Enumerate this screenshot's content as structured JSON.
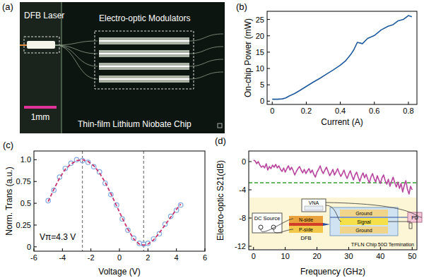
{
  "chart_data": [
    {
      "type": "image",
      "title": "(a)",
      "annotations": [
        "DFB Laser",
        "Electro-optic Modulators",
        "Thin-film Lithium Niobate Chip",
        "1mm"
      ]
    },
    {
      "type": "line",
      "title": "(b)",
      "x_label": "Current (A)",
      "y_label": "On-chip Power (mW)",
      "x": [
        0,
        0.03,
        0.06,
        0.08,
        0.1,
        0.13,
        0.16,
        0.2,
        0.24,
        0.28,
        0.32,
        0.36,
        0.4,
        0.43,
        0.46,
        0.48,
        0.5,
        0.53,
        0.56,
        0.6,
        0.64,
        0.68,
        0.71,
        0.74,
        0.77,
        0.8,
        0.82
      ],
      "series": [
        {
          "color": "#1f5b9c",
          "line_style": "solid",
          "values": [
            0.6,
            0.6,
            0.7,
            1.0,
            1.6,
            2.3,
            3.2,
            4.5,
            5.8,
            7.0,
            8.3,
            9.6,
            11.0,
            12.3,
            14.2,
            15.8,
            18.0,
            17.6,
            19.2,
            20.1,
            21.8,
            22.9,
            23.4,
            24.6,
            25.0,
            26.2,
            25.8
          ]
        }
      ],
      "xlim": [
        -0.03,
        0.85
      ],
      "xticks": [
        0,
        0.2,
        0.4,
        0.6,
        0.8
      ],
      "ylim": [
        -1,
        27.5
      ],
      "yticks": [
        0,
        5,
        10,
        15,
        20,
        25
      ],
      "grid": false
    },
    {
      "type": "line",
      "title": "(c)",
      "x_label": "Voltage (V)",
      "y_label": "Norm. Trans (a.u.)",
      "annotations": [
        "Vπ=4.3 V"
      ],
      "vlines": [
        -2.6,
        1.7
      ],
      "x": [
        -5,
        -4.6,
        -4.2,
        -3.8,
        -3.4,
        -3,
        -2.6,
        -2.2,
        -1.8,
        -1.4,
        -1,
        -0.6,
        -0.2,
        0.2,
        0.6,
        1,
        1.4,
        1.7,
        2,
        2.4,
        2.8,
        3.2,
        3.6,
        4,
        4.3
      ],
      "series": [
        {
          "color": "#7fa8e0",
          "marker": "circle",
          "line_style": "none",
          "values": [
            0.53,
            0.65,
            0.8,
            0.9,
            0.96,
            1.0,
            0.99,
            0.97,
            0.92,
            0.86,
            0.73,
            0.6,
            0.48,
            0.32,
            0.19,
            0.1,
            0.04,
            0.03,
            0.04,
            0.09,
            0.15,
            0.26,
            0.35,
            0.42,
            0.48
          ]
        },
        {
          "color": "#c8326e",
          "line_style": "dashed",
          "values": [
            0.52,
            0.66,
            0.79,
            0.89,
            0.95,
            0.99,
            1.0,
            0.98,
            0.93,
            0.85,
            0.74,
            0.61,
            0.47,
            0.33,
            0.2,
            0.09,
            0.03,
            0.02,
            0.03,
            0.08,
            0.16,
            0.25,
            0.34,
            0.43,
            0.49
          ]
        }
      ],
      "xlim": [
        -6,
        6
      ],
      "xticks": [
        -6,
        -4,
        -2,
        0,
        2,
        4,
        6
      ],
      "ylim": [
        -0.05,
        1.1
      ],
      "yticks": [
        0,
        0.25,
        0.5,
        0.75,
        {
          "value": 1,
          "label": "1.0"
        }
      ],
      "grid": false
    },
    {
      "type": "line",
      "title": "(d)",
      "x_label": "Frequency (GHz)",
      "y_label": "Electro-optic S21(dB)",
      "hlines": [
        -3
      ],
      "annotations": [
        "DC Source",
        "N-side",
        "P-side",
        "DFB",
        "TFLN Chip",
        "Ground",
        "Signal",
        "Ground",
        "VNA",
        "PD",
        "50Ω Termination"
      ],
      "x": [
        0,
        0.5,
        1,
        1.5,
        2,
        2.5,
        3,
        3.5,
        4,
        4.5,
        5,
        5.5,
        6,
        6.5,
        7,
        7.5,
        8,
        8.5,
        9,
        9.5,
        10,
        10.5,
        11,
        11.5,
        12,
        12.5,
        13,
        13.5,
        14,
        14.5,
        15,
        15.5,
        16,
        16.5,
        17,
        17.5,
        18,
        18.5,
        19,
        19.5,
        20,
        20.5,
        21,
        21.5,
        22,
        22.5,
        23,
        23.5,
        24,
        24.5,
        25,
        25.5,
        26,
        26.5,
        27,
        27.5,
        28,
        28.5,
        29,
        29.5,
        30,
        30.5,
        31,
        31.5,
        32,
        32.5,
        33,
        33.5,
        34,
        34.5,
        35,
        35.5,
        36,
        36.5,
        37,
        37.5,
        38,
        38.5,
        39,
        39.5,
        40,
        40.5,
        41,
        41.5,
        42,
        42.5,
        43,
        43.5,
        44,
        44.5,
        45,
        45.5,
        46,
        46.5,
        47,
        47.5,
        48,
        48.5,
        49,
        49.5,
        50
      ],
      "series": [
        {
          "color": "#b8449e",
          "line_style": "solid",
          "values": [
            0.2,
            0.1,
            -0.3,
            0,
            -0.5,
            -0.8,
            -0.6,
            -0.9,
            -0.3,
            -1.2,
            -0.7,
            -1.0,
            -0.5,
            -0.8,
            -0.4,
            -0.9,
            -0.6,
            -1.1,
            -1.4,
            -0.9,
            -1.5,
            -1.0,
            -0.6,
            -1.2,
            -0.8,
            -1.3,
            -1.9,
            -1.4,
            -1.0,
            -0.7,
            -1.2,
            -1.6,
            -1.1,
            -1.7,
            -1.3,
            -1.0,
            -1.6,
            -1.2,
            -1.8,
            -2.2,
            -1.5,
            -1.1,
            -0.6,
            -1.3,
            -1.7,
            -1.2,
            -0.8,
            -1.4,
            -2.0,
            -1.6,
            -1.1,
            -1.9,
            -1.5,
            -1.0,
            -1.6,
            -2.1,
            -1.7,
            -1.2,
            -1.9,
            -2.4,
            -1.8,
            -1.3,
            -2.0,
            -2.6,
            -1.9,
            -1.5,
            -2.2,
            -2.8,
            -2.1,
            -1.6,
            -2.3,
            -1.8,
            -2.5,
            -3.0,
            -2.2,
            -1.7,
            -2.4,
            -2.9,
            -2.0,
            -2.6,
            -3.1,
            -2.3,
            -1.9,
            -2.7,
            -3.2,
            -2.5,
            -3.5,
            -2.8,
            -2.2,
            -3.0,
            -3.6,
            -2.9,
            -3.8,
            -3.1,
            -4.3,
            -3.4,
            -2.7,
            -3.9,
            -4.6,
            -3.5,
            -4.0
          ]
        }
      ],
      "xlim": [
        -1.5,
        51.5
      ],
      "xticks": [
        0,
        10,
        20,
        30,
        40,
        50
      ],
      "ylim": [
        -12.5,
        1.5
      ],
      "yticks": [
        -12,
        -8,
        -4,
        0
      ],
      "grid": false
    }
  ]
}
